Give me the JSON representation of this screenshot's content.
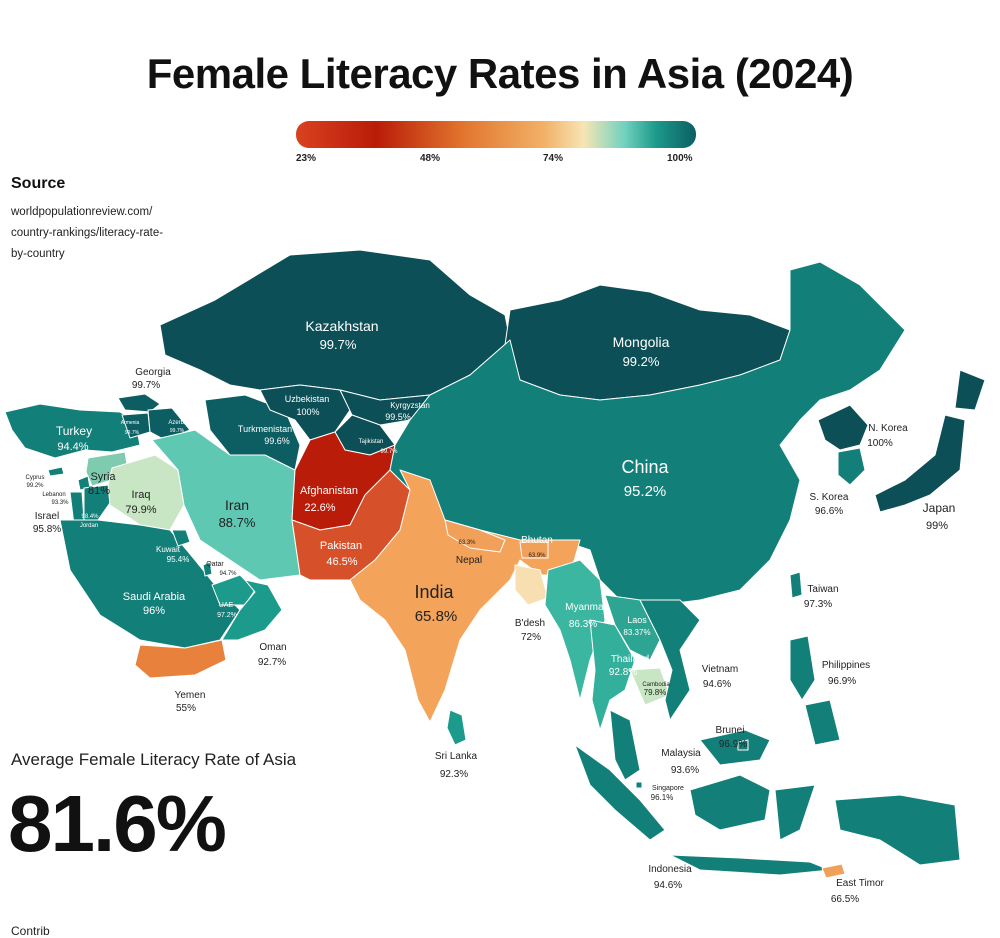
{
  "title": "Female Literacy Rates in Asia (2024)",
  "legend": {
    "ticks": [
      "23%",
      "48%",
      "74%",
      "100%"
    ],
    "colors": [
      "#b91c08",
      "#e2762e",
      "#f6e5b4",
      "#0d5e62"
    ]
  },
  "source": {
    "heading": "Source",
    "lines": [
      "worldpopulationreview.com/",
      "country-rankings/literacy-rate-",
      "by-country"
    ]
  },
  "average": {
    "label": "Average Female Literacy Rate of Asia",
    "value": "81.6%"
  },
  "footer_partial": "Contrib",
  "countries": [
    {
      "name": "Kazakhstan",
      "value": "99.7%"
    },
    {
      "name": "Mongolia",
      "value": "99.2%"
    },
    {
      "name": "China",
      "value": "95.2%"
    },
    {
      "name": "Uzbekistan",
      "value": "100%"
    },
    {
      "name": "Kyrgyzstan",
      "value": "99.5%"
    },
    {
      "name": "Turkmenistan",
      "value": "99.6%"
    },
    {
      "name": "Tajikistan",
      "value": "99.7%"
    },
    {
      "name": "Afghanistan",
      "value": "22.6%"
    },
    {
      "name": "Pakistan",
      "value": "46.5%"
    },
    {
      "name": "India",
      "value": "65.8%"
    },
    {
      "name": "Nepal",
      "value": "63.3%"
    },
    {
      "name": "Bhutan",
      "value": "63.9%"
    },
    {
      "name": "B'desh",
      "value": "72%"
    },
    {
      "name": "Myanmar",
      "value": "86.3%"
    },
    {
      "name": "Laos",
      "value": "83.37%"
    },
    {
      "name": "Thailand",
      "value": "92.8%"
    },
    {
      "name": "Cambodia",
      "value": "79.8%"
    },
    {
      "name": "Vietnam",
      "value": "94.6%"
    },
    {
      "name": "Sri Lanka",
      "value": "92.3%"
    },
    {
      "name": "Iran",
      "value": "88.7%"
    },
    {
      "name": "Turkey",
      "value": "94.4%"
    },
    {
      "name": "Georgia",
      "value": "99.7%"
    },
    {
      "name": "Armenia",
      "value": "99.7%"
    },
    {
      "name": "Azerb.",
      "value": "99.7%"
    },
    {
      "name": "Cyprus",
      "value": "99.2%"
    },
    {
      "name": "Lebanon",
      "value": "93.3%"
    },
    {
      "name": "Syria",
      "value": "81%"
    },
    {
      "name": "Iraq",
      "value": "79.9%"
    },
    {
      "name": "Israel",
      "value": "95.8%"
    },
    {
      "name": "Jordan",
      "value": "98.4%"
    },
    {
      "name": "Kuwait",
      "value": "95.4%"
    },
    {
      "name": "Qatar",
      "value": "94.7%"
    },
    {
      "name": "Saudi Arabia",
      "value": "96%"
    },
    {
      "name": "UAE",
      "value": "97.2%"
    },
    {
      "name": "Oman",
      "value": "92.7%"
    },
    {
      "name": "Yemen",
      "value": "55%"
    },
    {
      "name": "N. Korea",
      "value": "100%"
    },
    {
      "name": "S. Korea",
      "value": "96.6%"
    },
    {
      "name": "Japan",
      "value": "99%"
    },
    {
      "name": "Taiwan",
      "value": "97.3%"
    },
    {
      "name": "Philippines",
      "value": "96.9%"
    },
    {
      "name": "Brunei",
      "value": "96.9%"
    },
    {
      "name": "Malaysia",
      "value": "93.6%"
    },
    {
      "name": "Singapore",
      "value": "96.1%"
    },
    {
      "name": "Indonesia",
      "value": "94.6%"
    },
    {
      "name": "East Timor",
      "value": "66.5%"
    }
  ]
}
